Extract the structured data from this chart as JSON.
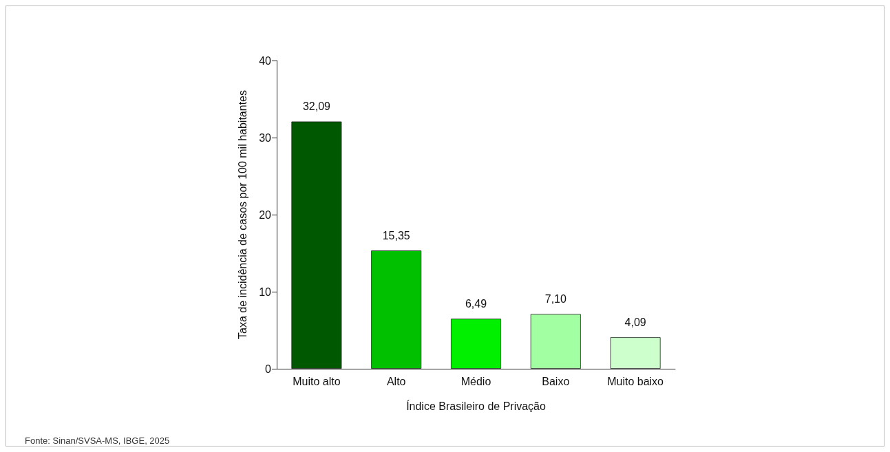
{
  "chart_data": {
    "type": "bar",
    "categories": [
      "Muito alto",
      "Alto",
      "Médio",
      "Baixo",
      "Muito baixo"
    ],
    "values": [
      32.09,
      15.35,
      6.49,
      7.1,
      4.09
    ],
    "colors": [
      "#005800",
      "#00c000",
      "#00f000",
      "#a2ffa2",
      "#ccffcc"
    ],
    "value_labels": [
      "32,09",
      "15,35",
      "6,49",
      "7,10",
      "4,09"
    ],
    "xlabel": "Índice Brasileiro de Privação",
    "ylabel": "Taxa de incidência de casos por 100 mil habitantes",
    "ylim": [
      0,
      40
    ],
    "yticks": [
      0,
      10,
      20,
      30,
      40
    ],
    "grid": false,
    "annotations": [
      "Fonte: Sinan/SVSA-MS, IBGE, 2025"
    ]
  }
}
